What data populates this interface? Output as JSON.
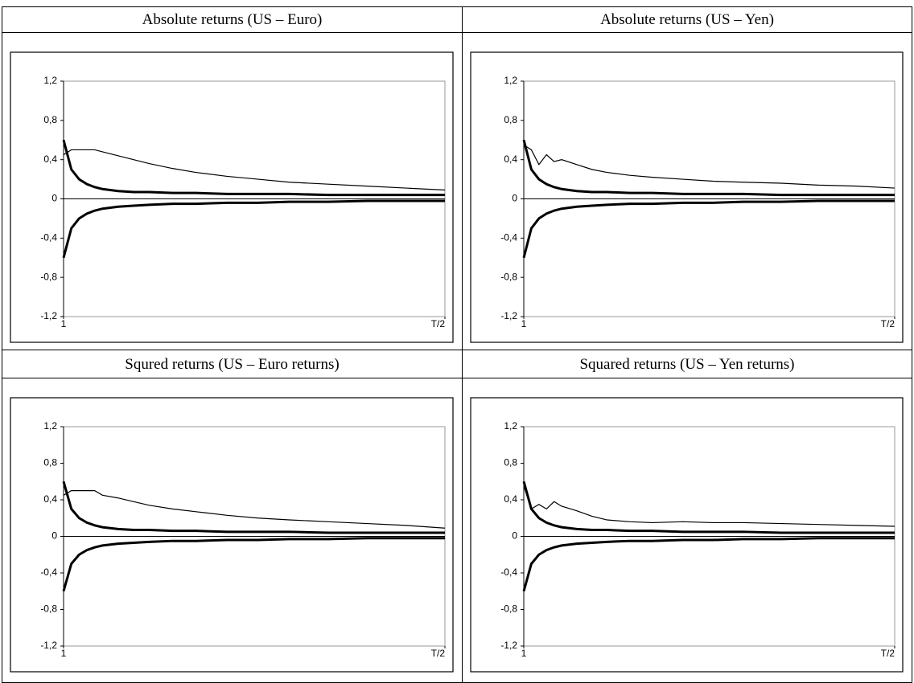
{
  "chart_data": [
    {
      "type": "line",
      "title": "Absolute returns (US – Euro)",
      "x": [
        1,
        2,
        3,
        4,
        5,
        6,
        8,
        10,
        12,
        15,
        18,
        22,
        26,
        30,
        35,
        40,
        45,
        50
      ],
      "xlim": [
        1,
        50
      ],
      "xticks": [
        1,
        {
          "value": 50,
          "label": "T/2"
        }
      ],
      "ylim": [
        -1.2,
        1.2
      ],
      "yticks": [
        {
          "value": 1.2,
          "label": "1,2"
        },
        {
          "value": 0.8,
          "label": "0,8"
        },
        {
          "value": 0.4,
          "label": "0,4"
        },
        0,
        {
          "value": -0.4,
          "label": "-0,4"
        },
        {
          "value": -0.8,
          "label": "-0,8"
        },
        {
          "value": -1.2,
          "label": "-1,2"
        }
      ],
      "series": [
        {
          "color": "#000000",
          "width": 1.2,
          "values": [
            0.45,
            0.5,
            0.5,
            0.5,
            0.5,
            0.48,
            0.44,
            0.4,
            0.36,
            0.31,
            0.27,
            0.23,
            0.2,
            0.17,
            0.15,
            0.13,
            0.11,
            0.09
          ]
        },
        {
          "color": "#000000",
          "width": 3,
          "values": [
            0.6,
            0.3,
            0.2,
            0.15,
            0.12,
            0.1,
            0.08,
            0.07,
            0.07,
            0.06,
            0.06,
            0.05,
            0.05,
            0.05,
            0.04,
            0.04,
            0.04,
            0.04
          ]
        },
        {
          "color": "#000000",
          "width": 3,
          "values": [
            -0.6,
            -0.3,
            -0.2,
            -0.15,
            -0.12,
            -0.1,
            -0.08,
            -0.07,
            -0.06,
            -0.05,
            -0.05,
            -0.04,
            -0.04,
            -0.03,
            -0.03,
            -0.02,
            -0.02,
            -0.02
          ]
        }
      ]
    },
    {
      "type": "line",
      "title": "Absolute returns (US – Yen)",
      "x": [
        1,
        2,
        3,
        4,
        5,
        6,
        8,
        10,
        12,
        15,
        18,
        22,
        26,
        30,
        35,
        40,
        45,
        50
      ],
      "xlim": [
        1,
        50
      ],
      "xticks": [
        1,
        {
          "value": 50,
          "label": "T/2"
        }
      ],
      "ylim": [
        -1.2,
        1.2
      ],
      "yticks": [
        {
          "value": 1.2,
          "label": "1,2"
        },
        {
          "value": 0.8,
          "label": "0,8"
        },
        {
          "value": 0.4,
          "label": "0,4"
        },
        0,
        {
          "value": -0.4,
          "label": "-0,4"
        },
        {
          "value": -0.8,
          "label": "-0,8"
        },
        {
          "value": -1.2,
          "label": "-1,2"
        }
      ],
      "series": [
        {
          "color": "#000000",
          "width": 1.2,
          "values": [
            0.55,
            0.5,
            0.35,
            0.45,
            0.38,
            0.4,
            0.35,
            0.3,
            0.27,
            0.24,
            0.22,
            0.2,
            0.18,
            0.17,
            0.16,
            0.14,
            0.13,
            0.11
          ]
        },
        {
          "color": "#000000",
          "width": 3,
          "values": [
            0.6,
            0.3,
            0.2,
            0.15,
            0.12,
            0.1,
            0.08,
            0.07,
            0.07,
            0.06,
            0.06,
            0.05,
            0.05,
            0.05,
            0.04,
            0.04,
            0.04,
            0.04
          ]
        },
        {
          "color": "#000000",
          "width": 3,
          "values": [
            -0.6,
            -0.3,
            -0.2,
            -0.15,
            -0.12,
            -0.1,
            -0.08,
            -0.07,
            -0.06,
            -0.05,
            -0.05,
            -0.04,
            -0.04,
            -0.03,
            -0.03,
            -0.02,
            -0.02,
            -0.02
          ]
        }
      ]
    },
    {
      "type": "line",
      "title": "Squred returns (US – Euro returns)",
      "x": [
        1,
        2,
        3,
        4,
        5,
        6,
        8,
        10,
        12,
        15,
        18,
        22,
        26,
        30,
        35,
        40,
        45,
        50
      ],
      "xlim": [
        1,
        50
      ],
      "xticks": [
        1,
        {
          "value": 50,
          "label": "T/2"
        }
      ],
      "ylim": [
        -1.2,
        1.2
      ],
      "yticks": [
        {
          "value": 1.2,
          "label": "1,2"
        },
        {
          "value": 0.8,
          "label": "0,8"
        },
        {
          "value": 0.4,
          "label": "0,4"
        },
        0,
        {
          "value": -0.4,
          "label": "-0,4"
        },
        {
          "value": -0.8,
          "label": "-0,8"
        },
        {
          "value": -1.2,
          "label": "-1,2"
        }
      ],
      "series": [
        {
          "color": "#000000",
          "width": 1.2,
          "values": [
            0.45,
            0.5,
            0.5,
            0.5,
            0.5,
            0.45,
            0.42,
            0.38,
            0.34,
            0.3,
            0.27,
            0.23,
            0.2,
            0.18,
            0.16,
            0.14,
            0.12,
            0.09
          ]
        },
        {
          "color": "#000000",
          "width": 3,
          "values": [
            0.6,
            0.3,
            0.2,
            0.15,
            0.12,
            0.1,
            0.08,
            0.07,
            0.07,
            0.06,
            0.06,
            0.05,
            0.05,
            0.05,
            0.04,
            0.04,
            0.04,
            0.04
          ]
        },
        {
          "color": "#000000",
          "width": 3,
          "values": [
            -0.6,
            -0.3,
            -0.2,
            -0.15,
            -0.12,
            -0.1,
            -0.08,
            -0.07,
            -0.06,
            -0.05,
            -0.05,
            -0.04,
            -0.04,
            -0.03,
            -0.03,
            -0.02,
            -0.02,
            -0.02
          ]
        }
      ]
    },
    {
      "type": "line",
      "title": "Squared returns (US – Yen returns)",
      "x": [
        1,
        2,
        3,
        4,
        5,
        6,
        8,
        10,
        12,
        15,
        18,
        22,
        26,
        30,
        35,
        40,
        45,
        50
      ],
      "xlim": [
        1,
        50
      ],
      "xticks": [
        1,
        {
          "value": 50,
          "label": "T/2"
        }
      ],
      "ylim": [
        -1.2,
        1.2
      ],
      "yticks": [
        {
          "value": 1.2,
          "label": "1,2"
        },
        {
          "value": 0.8,
          "label": "0,8"
        },
        {
          "value": 0.4,
          "label": "0,4"
        },
        0,
        {
          "value": -0.4,
          "label": "-0,4"
        },
        {
          "value": -0.8,
          "label": "-0,8"
        },
        {
          "value": -1.2,
          "label": "-1,2"
        }
      ],
      "series": [
        {
          "color": "#000000",
          "width": 1.2,
          "values": [
            0.55,
            0.3,
            0.35,
            0.3,
            0.38,
            0.33,
            0.28,
            0.22,
            0.18,
            0.16,
            0.15,
            0.16,
            0.15,
            0.15,
            0.14,
            0.13,
            0.12,
            0.11
          ]
        },
        {
          "color": "#000000",
          "width": 3,
          "values": [
            0.6,
            0.3,
            0.2,
            0.15,
            0.12,
            0.1,
            0.08,
            0.07,
            0.07,
            0.06,
            0.06,
            0.05,
            0.05,
            0.05,
            0.04,
            0.04,
            0.04,
            0.04
          ]
        },
        {
          "color": "#000000",
          "width": 3,
          "values": [
            -0.6,
            -0.3,
            -0.2,
            -0.15,
            -0.12,
            -0.1,
            -0.08,
            -0.07,
            -0.06,
            -0.05,
            -0.05,
            -0.04,
            -0.04,
            -0.03,
            -0.03,
            -0.02,
            -0.02,
            -0.02
          ]
        }
      ]
    }
  ]
}
